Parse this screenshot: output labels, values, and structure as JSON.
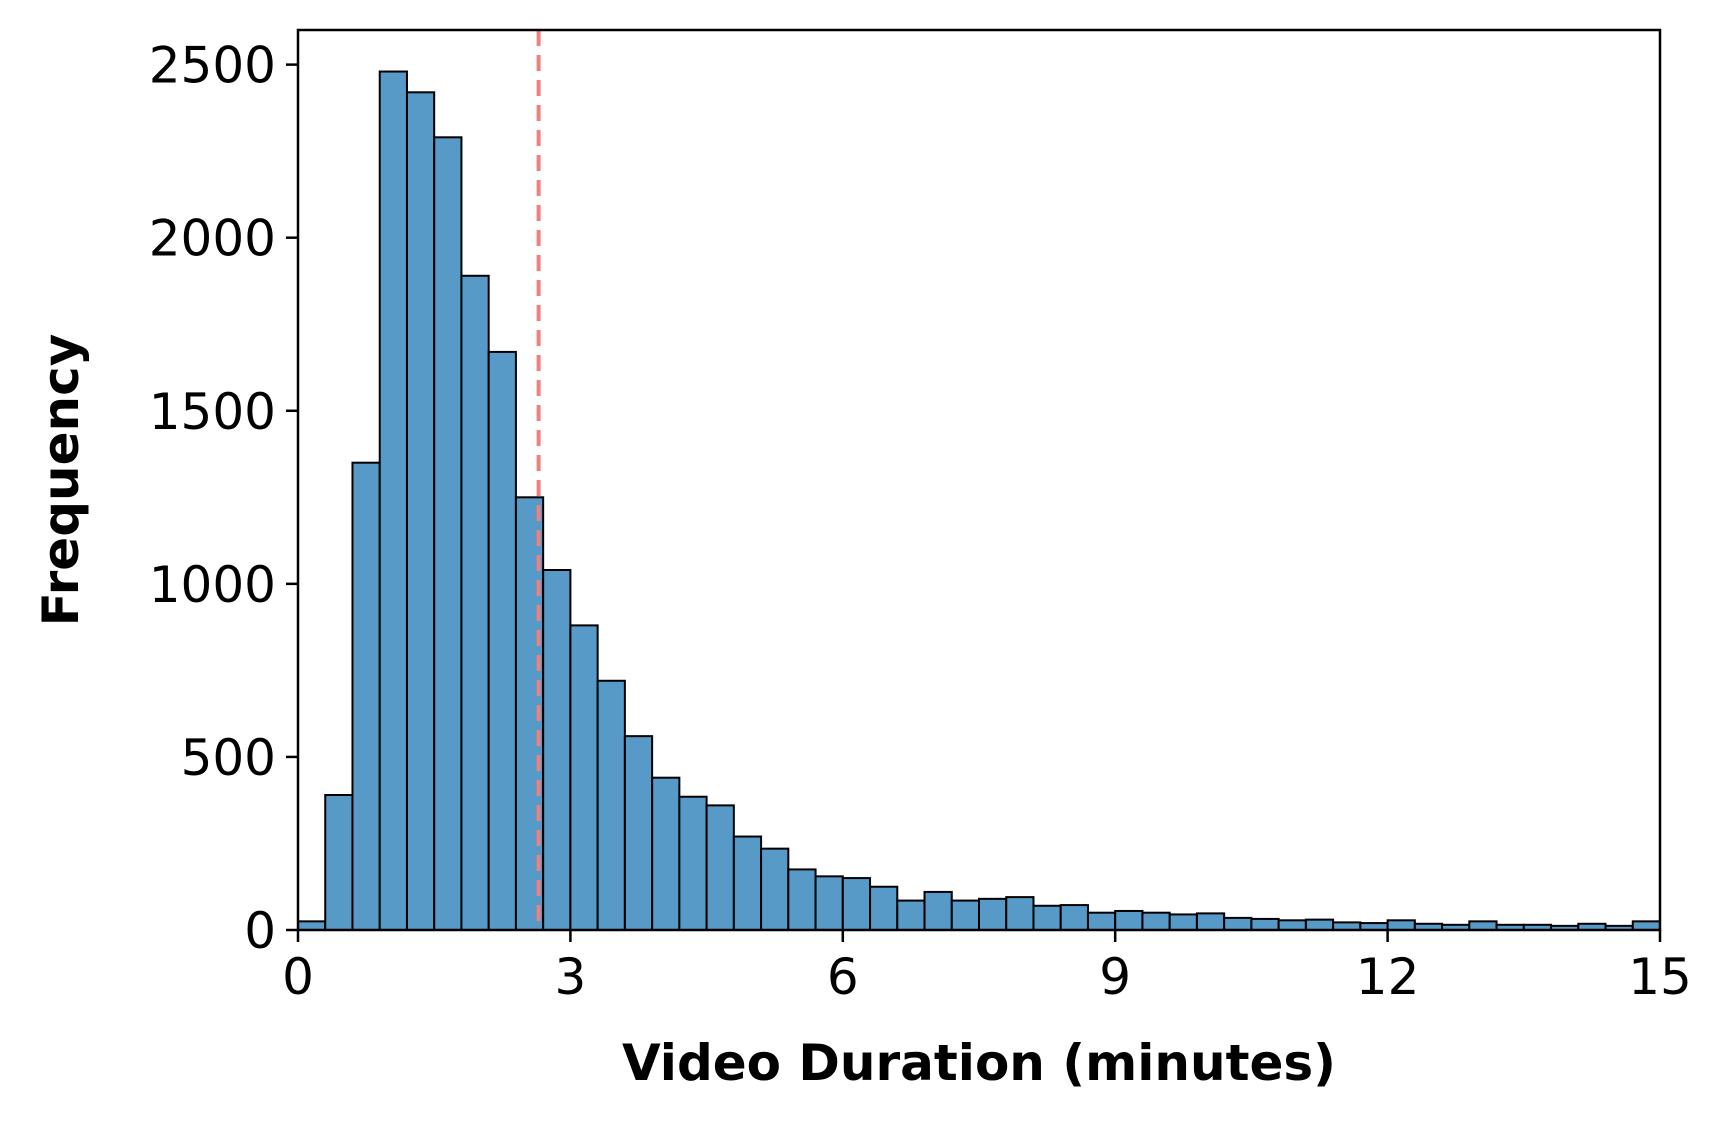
{
  "chart_data": {
    "type": "bar",
    "subtype": "histogram",
    "title": "",
    "xlabel": "Video Duration (minutes)",
    "ylabel": "Frequency",
    "xlim": [
      0,
      15
    ],
    "ylim": [
      0,
      2600
    ],
    "xticks": [
      0,
      3,
      6,
      9,
      12,
      15
    ],
    "yticks": [
      0,
      500,
      1000,
      1500,
      2000,
      2500
    ],
    "bin_width": 0.3,
    "bin_edges_start": 0,
    "values": [
      25,
      390,
      1350,
      2480,
      2420,
      2290,
      1890,
      1670,
      1250,
      1040,
      880,
      720,
      560,
      440,
      385,
      360,
      270,
      235,
      175,
      155,
      150,
      125,
      85,
      110,
      85,
      90,
      95,
      70,
      72,
      50,
      55,
      50,
      45,
      48,
      35,
      32,
      28,
      30,
      22,
      20,
      28,
      18,
      15,
      25,
      15,
      15,
      12,
      18,
      12,
      25
    ],
    "reference_line": {
      "x": 2.65,
      "style": "dashed",
      "color": "#f08080"
    },
    "bar_color": "#5799c7",
    "edge_color": "#000000",
    "grid": false,
    "legend": "none"
  }
}
